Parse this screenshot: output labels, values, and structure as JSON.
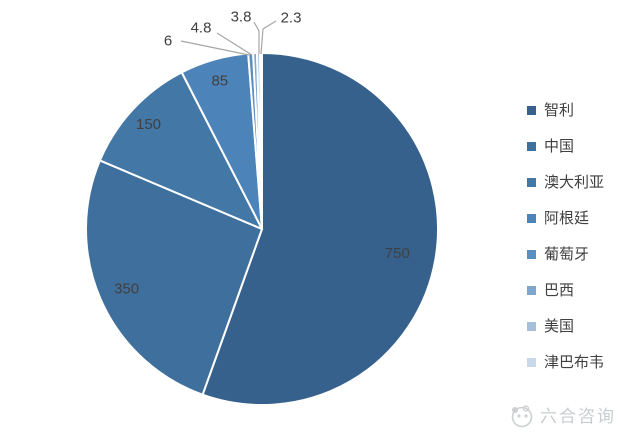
{
  "chart_data": {
    "type": "pie",
    "title": "",
    "labels": [
      "智利",
      "中国",
      "澳大利亚",
      "阿根廷",
      "葡萄牙",
      "巴西",
      "美国",
      "津巴布韦"
    ],
    "values": [
      750,
      350,
      150,
      85,
      6,
      4.8,
      3.8,
      2.3
    ],
    "value_labels": [
      "750",
      "350",
      "150",
      "85",
      "6",
      "4.8",
      "3.8",
      "2.3"
    ],
    "colors": [
      "#36618C",
      "#3F6F9D",
      "#4377A6",
      "#4C84BA",
      "#5A8DC0",
      "#7FA6CD",
      "#A6BFDB",
      "#CAD9EA"
    ],
    "start_angle_deg": 0,
    "direction": "clockwise",
    "legend_position": "right",
    "background": "#FFFFFF",
    "label_color": "#404040",
    "label_font_size": 15,
    "leader_line_color": "#A6A6A6",
    "slice_border_color": "#FFFFFF"
  },
  "watermark": {
    "text": "六合咨询",
    "logo": "liuhe-panda-logo",
    "color": "#C9CCCF"
  }
}
